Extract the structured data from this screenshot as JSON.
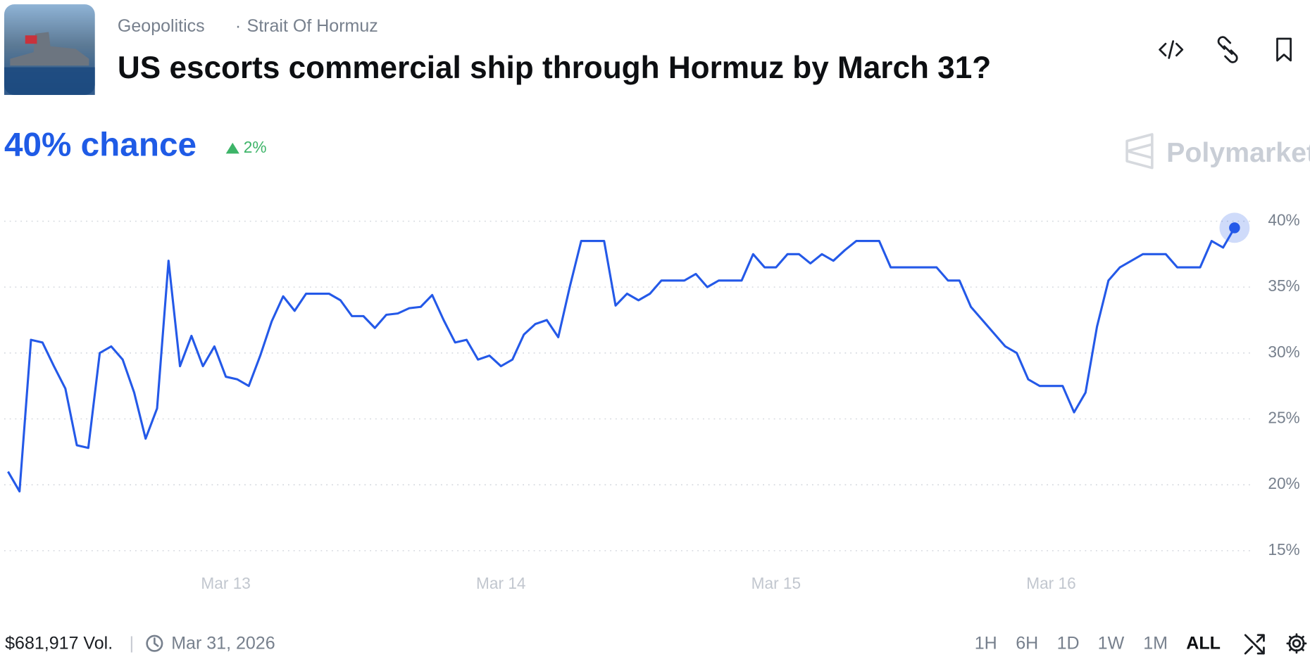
{
  "header": {
    "breadcrumbs": [
      "Geopolitics",
      "Strait Of Hormuz"
    ],
    "title": "US escorts commercial ship through Hormuz by March 31?"
  },
  "summary": {
    "chance": "40% chance",
    "change": "2%"
  },
  "brand": "Polymarket",
  "footer": {
    "volume": "$681,917 Vol.",
    "end_date": "Mar 31, 2026",
    "ranges": [
      "1H",
      "6H",
      "1D",
      "1W",
      "1M",
      "ALL"
    ]
  },
  "chart_data": {
    "type": "line",
    "color": "#2459e8",
    "categories": [
      null,
      null,
      null,
      null,
      null,
      null,
      null,
      null,
      null,
      null,
      null,
      null,
      null,
      null,
      null,
      null,
      null,
      null,
      null,
      "Mar 13",
      null,
      null,
      null,
      null,
      null,
      null,
      null,
      null,
      null,
      null,
      null,
      null,
      null,
      null,
      null,
      null,
      null,
      null,
      null,
      null,
      null,
      null,
      null,
      "Mar 14",
      null,
      null,
      null,
      null,
      null,
      null,
      null,
      null,
      null,
      null,
      null,
      null,
      null,
      null,
      null,
      null,
      null,
      null,
      null,
      null,
      null,
      null,
      null,
      "Mar 15",
      null,
      null,
      null,
      null,
      null,
      null,
      null,
      null,
      null,
      null,
      null,
      null,
      null,
      null,
      null,
      null,
      null,
      null,
      null,
      null,
      null,
      null,
      null,
      "Mar 16",
      null,
      null,
      null,
      null,
      null,
      null,
      null,
      null,
      null,
      null,
      null,
      null,
      null,
      null,
      null,
      null
    ],
    "values": [
      21,
      19.5,
      31,
      30.8,
      29,
      27.3,
      23,
      22.8,
      30,
      30.5,
      29.5,
      27,
      23.5,
      25.8,
      37,
      29,
      31.3,
      29,
      30.5,
      28.2,
      28,
      27.5,
      29.8,
      32.4,
      34.3,
      33.2,
      34.5,
      34.5,
      34.5,
      34,
      32.8,
      32.8,
      31.9,
      32.9,
      33,
      33.4,
      33.5,
      34.4,
      32.5,
      30.8,
      31,
      29.5,
      29.8,
      29,
      29.5,
      31.4,
      32.2,
      32.5,
      31.2,
      35,
      38.5,
      38.5,
      38.5,
      33.6,
      34.5,
      34,
      34.5,
      35.5,
      35.5,
      35.5,
      36,
      35,
      35.5,
      35.5,
      35.5,
      37.5,
      36.5,
      36.5,
      37.5,
      37.5,
      36.8,
      37.5,
      37,
      37.8,
      38.5,
      38.5,
      38.5,
      36.5,
      36.5,
      36.5,
      36.5,
      36.5,
      35.5,
      35.5,
      33.5,
      32.5,
      31.5,
      30.5,
      30,
      28,
      27.5,
      27.5,
      27.5,
      25.5,
      27,
      32,
      35.5,
      36.5,
      37,
      37.5,
      37.5,
      37.5,
      36.5,
      36.5,
      36.5,
      38.5,
      38,
      39.5
    ],
    "ylim": [
      13.5,
      41.5
    ],
    "yticks": [
      {
        "value": 15,
        "label": "15%"
      },
      {
        "value": 20,
        "label": "20%"
      },
      {
        "value": 25,
        "label": "25%"
      },
      {
        "value": 30,
        "label": "30%"
      },
      {
        "value": 35,
        "label": "35%"
      },
      {
        "value": 40,
        "label": "40%"
      }
    ],
    "grid": true
  }
}
